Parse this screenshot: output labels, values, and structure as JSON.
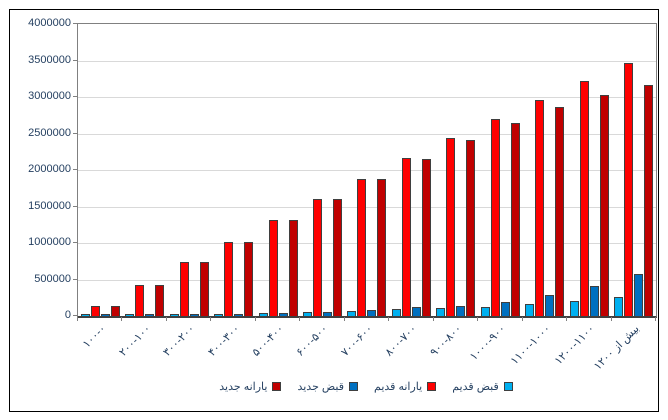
{
  "chart_data": {
    "type": "bar",
    "title": "",
    "xlabel": "",
    "ylabel": "",
    "categories": [
      "۱۰۰-۰",
      "۲۰۰-۱۰۰",
      "۳۰۰-۲۰۰",
      "۴۰۰-۳۰۰",
      "۵۰۰-۴۰۰",
      "۶۰۰-۵۰۰",
      "۷۰۰-۶۰۰",
      "۸۰۰-۷۰۰",
      "۹۰۰-۸۰۰",
      "۱۰۰۰-۹۰۰",
      "۱۱۰۰-۱۰۰۰",
      "۱۲۰۰-۱۱۰۰",
      "بیش از ۱۲۰۰"
    ],
    "series": [
      {
        "name": "قبض قدیم",
        "color": "#00B0F0",
        "values": [
          10000,
          12000,
          15000,
          25000,
          40000,
          55000,
          70000,
          90000,
          110000,
          130000,
          170000,
          205000,
          255000
        ]
      },
      {
        "name": "یارانه قدیم",
        "color": "#FE0000",
        "values": [
          140000,
          430000,
          740000,
          1020000,
          1310000,
          1600000,
          1880000,
          2160000,
          2440000,
          2700000,
          2960000,
          3220000,
          3470000
        ]
      },
      {
        "name": "قبض جدید",
        "color": "#0070C0",
        "values": [
          12000,
          15000,
          20000,
          30000,
          45000,
          60000,
          85000,
          120000,
          140000,
          195000,
          290000,
          410000,
          575000
        ]
      },
      {
        "name": "یارانه جدید",
        "color": "#C00000",
        "values": [
          140000,
          430000,
          740000,
          1010000,
          1310000,
          1600000,
          1870000,
          2150000,
          2410000,
          2640000,
          2860000,
          3030000,
          3160000
        ]
      }
    ],
    "ylim": [
      0,
      4000000
    ],
    "ytick_step": 500000,
    "yticks": [
      "0",
      "500000",
      "1000000",
      "1500000",
      "2000000",
      "2500000",
      "3000000",
      "3500000",
      "4000000"
    ],
    "grid": true,
    "legend_position": "bottom",
    "legend_order_left_to_right": [
      "یارانه جدید",
      "قبض جدید",
      "یارانه قدیم",
      "قبض قدیم"
    ],
    "colors": {
      "gridline": "#D9D9D9",
      "axis_text": "#254061",
      "bar_outline": "#3F3F3F",
      "plot_frame": "#808080",
      "outer_border": "#000000"
    }
  }
}
